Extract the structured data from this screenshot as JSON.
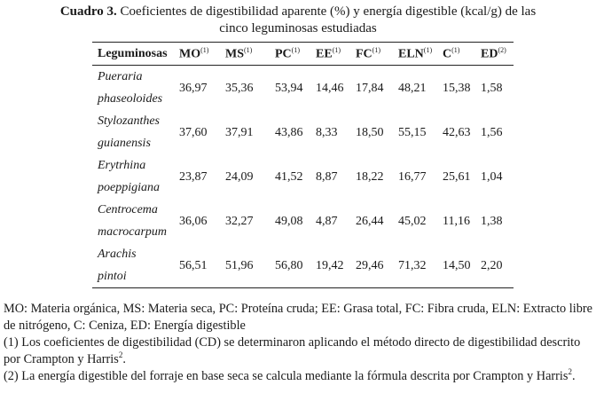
{
  "caption": {
    "label": "Cuadro 3.",
    "line1": "Coeficientes de digestibilidad aparente (%) y energía digestible (kcal/g) de las",
    "line2": "cinco leguminosas estudiadas"
  },
  "table": {
    "headers": [
      {
        "name": "Leguminosas",
        "sup": ""
      },
      {
        "name": "MO",
        "sup": "(1)"
      },
      {
        "name": "MS",
        "sup": "(1)"
      },
      {
        "name": "PC",
        "sup": "(1)"
      },
      {
        "name": "EE",
        "sup": "(1)"
      },
      {
        "name": "FC",
        "sup": "(1)"
      },
      {
        "name": "ELN",
        "sup": "(1)"
      },
      {
        "name": "C",
        "sup": "(1)"
      },
      {
        "name": "ED",
        "sup": "(2)"
      }
    ],
    "rows": [
      {
        "name1": "Pueraria",
        "name2": "phaseoloides",
        "values": [
          "36,97",
          "35,36",
          "53,94",
          "14,46",
          "17,84",
          "48,21",
          "15,38",
          "1,58"
        ]
      },
      {
        "name1": "Stylozanthes",
        "name2": "guianensis",
        "values": [
          "37,60",
          "37,91",
          "43,86",
          "8,33",
          "18,50",
          "55,15",
          "42,63",
          "1,56"
        ]
      },
      {
        "name1": "Erytrhina",
        "name2": "poeppigiana",
        "values": [
          "23,87",
          "24,09",
          "41,52",
          "8,87",
          "18,22",
          "16,77",
          "25,61",
          "1,04"
        ]
      },
      {
        "name1": "Centrocema",
        "name2": "macrocarpum",
        "values": [
          "36,06",
          "32,27",
          "49,08",
          "4,87",
          "26,44",
          "45,02",
          "11,16",
          "1,38"
        ]
      },
      {
        "name1": "Arachis",
        "name2": "pintoi",
        "values": [
          "56,51",
          "51,96",
          "56,80",
          "19,42",
          "29,46",
          "71,32",
          "14,50",
          "2,20"
        ]
      }
    ]
  },
  "notes": {
    "abbreviations": "MO: Materia orgánica, MS: Materia seca, PC: Proteína cruda; EE: Grasa total, FC: Fibra cruda, ELN: Extracto libre de nitrógeno, C: Ceniza, ED: Energía digestible",
    "note1": "(1) Los coeficientes de digestibilidad (CD) se determinaron aplicando el método directo de digestibilidad descrito por Crampton y Harris",
    "note2": "(2) La energía digestible del forraje en base seca se calcula mediante la fórmula descrita por Crampton y Harris",
    "ref_sup": "2",
    "end": "."
  }
}
